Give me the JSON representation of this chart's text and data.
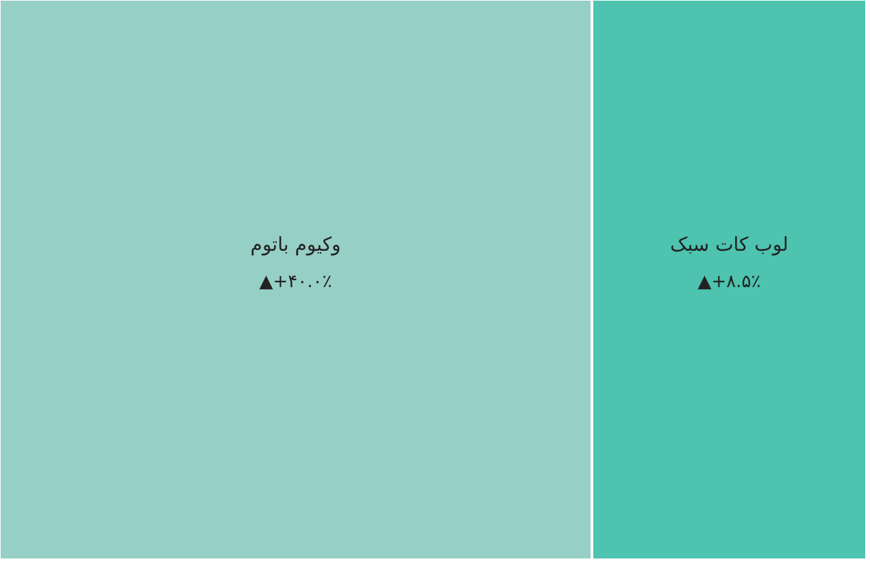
{
  "chart_data": {
    "type": "other",
    "categories": [
      "وکیوم باتوم",
      "لوب کات سبک"
    ],
    "values": [
      40.0,
      8.5
    ],
    "value_labels": [
      "▲+۴۰.۰٪",
      "▲+۸.۵٪"
    ],
    "colors": [
      "#96cfc5",
      "#4dc3b0"
    ]
  }
}
